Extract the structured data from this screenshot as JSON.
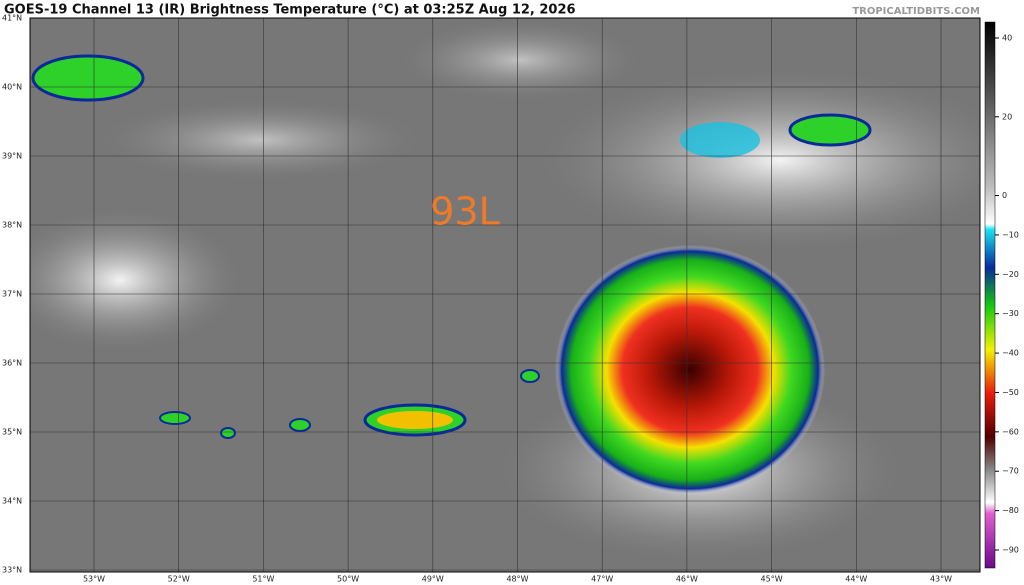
{
  "title": "GOES-19 Channel 13 (IR) Brightness Temperature (°C) at 03:25Z Aug 12, 2026",
  "credit": "TROPICALTIDBITS.COM",
  "annotation": "93L",
  "latitude_labels": [
    "41°N",
    "40°N",
    "39°N",
    "38°N",
    "37°N",
    "36°N",
    "35°N",
    "34°N",
    "33°N"
  ],
  "longitude_labels": [
    "53°W",
    "52°W",
    "51°W",
    "50°W",
    "49°W",
    "48°W",
    "47°W",
    "46°W",
    "45°W",
    "44°W",
    "43°W"
  ],
  "colorbar": {
    "ticks": [
      40,
      20,
      0,
      {
        "value": -10,
        "label": "−10"
      },
      {
        "value": -20,
        "label": "−20"
      },
      {
        "value": -30,
        "label": "−30"
      },
      {
        "value": -40,
        "label": "−40"
      },
      {
        "value": -50,
        "label": "−50"
      },
      {
        "value": -60,
        "label": "−60"
      },
      {
        "value": -70,
        "label": "−70"
      },
      {
        "value": -80,
        "label": "−80"
      },
      {
        "value": -90,
        "label": "−90"
      }
    ]
  }
}
